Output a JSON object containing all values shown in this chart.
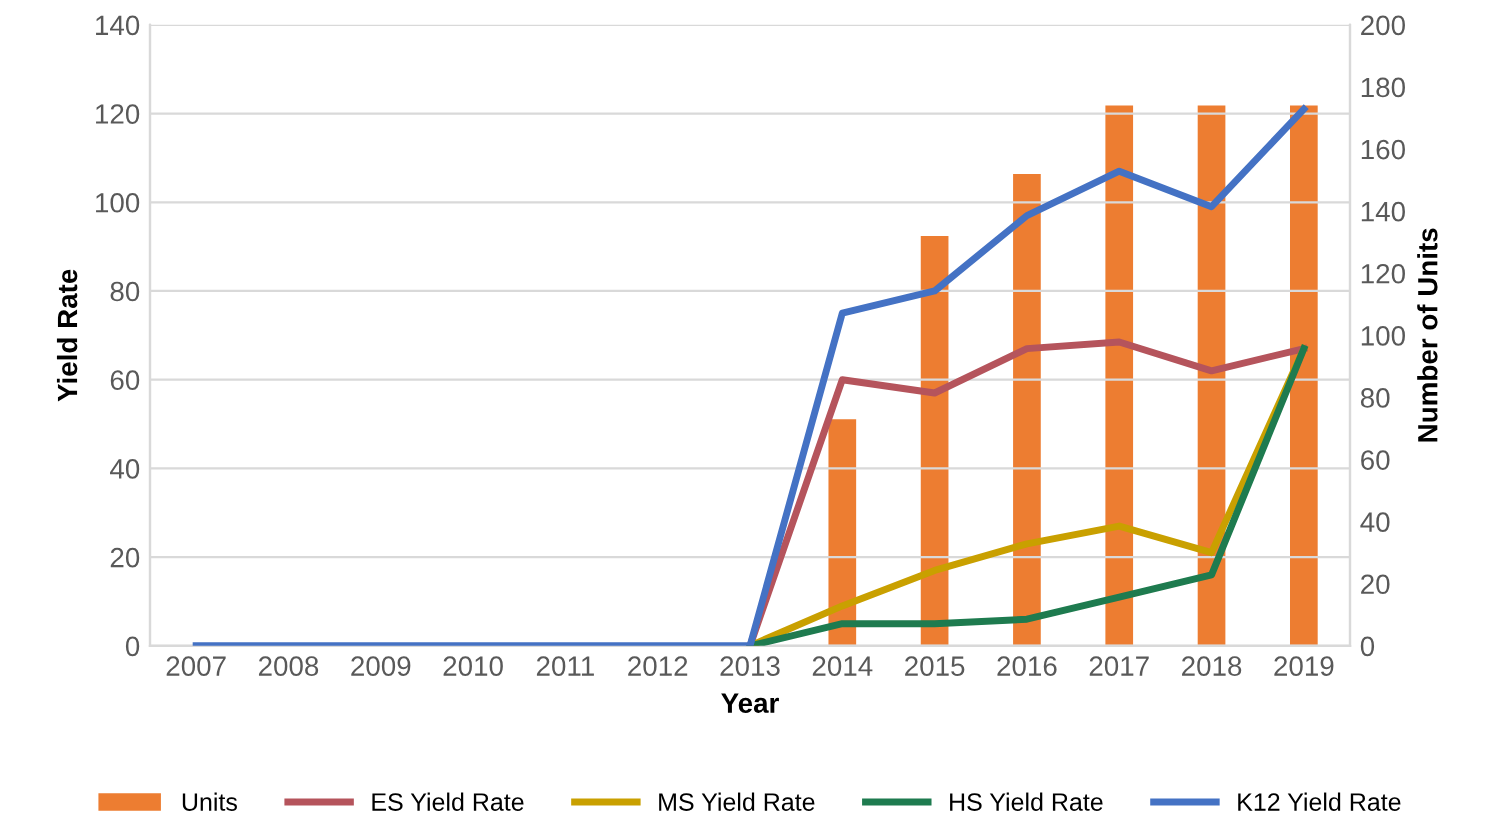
{
  "chart_data": {
    "type": "line",
    "xlabel": "Year",
    "ylabel": "Yield Rate",
    "y2label": "Number of Units",
    "categories": [
      "2007",
      "2008",
      "2009",
      "2010",
      "2011",
      "2012",
      "2013",
      "2014",
      "2015",
      "2016",
      "2017",
      "2018",
      "2019"
    ],
    "series": [
      {
        "name": "Units",
        "type": "bar",
        "axis": "y2",
        "color": "#ed7d31",
        "values": [
          0,
          0,
          0,
          0,
          0,
          0,
          0,
          73,
          132,
          152,
          174,
          174,
          174
        ]
      },
      {
        "name": "ES Yield Rate",
        "color": "#b5545c",
        "values": [
          null,
          null,
          null,
          null,
          null,
          null,
          0,
          60,
          57,
          67,
          68.5,
          62,
          67
        ]
      },
      {
        "name": "MS Yield Rate",
        "color": "#c9a000",
        "values": [
          null,
          null,
          null,
          null,
          null,
          null,
          0,
          9,
          17,
          23,
          27,
          21,
          67
        ]
      },
      {
        "name": "HS Yield Rate",
        "color": "#1e7b4f",
        "values": [
          null,
          null,
          null,
          null,
          null,
          null,
          0,
          5,
          5,
          6,
          11,
          16,
          67
        ]
      },
      {
        "name": "K12 Yield Rate",
        "color": "#4472c4",
        "values": [
          0,
          0,
          0,
          0,
          0,
          0,
          0,
          75,
          80,
          97,
          107,
          99,
          121
        ]
      }
    ],
    "ylim": [
      0,
      140
    ],
    "yticks": [
      0,
      20,
      40,
      60,
      80,
      100,
      120,
      140
    ],
    "y2lim": [
      0,
      200
    ],
    "y2ticks": [
      0,
      20,
      40,
      60,
      80,
      100,
      120,
      140,
      160,
      180,
      200
    ],
    "grid": "y",
    "legend": "bottom",
    "marker": "none",
    "line_style": "solid"
  }
}
